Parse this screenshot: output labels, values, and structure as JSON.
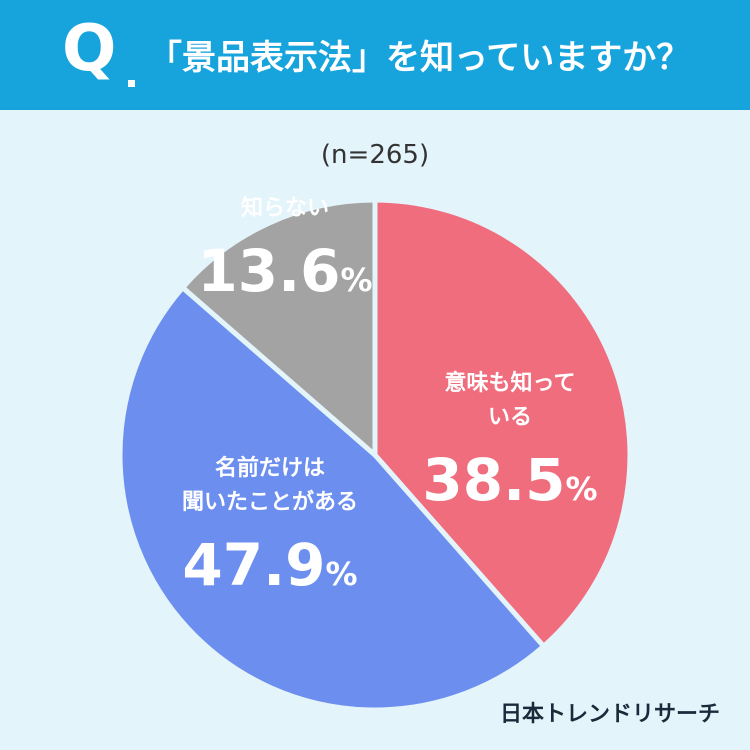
{
  "header": {
    "q_label": "Q",
    "question": "「景品表示法」を知っていますか？"
  },
  "sample_size": "(n=265)",
  "brand": "日本トレンドリサーチ",
  "colors": {
    "header": "#17a3dc",
    "background": "#e4f4fb",
    "know_meaning": "#f06d7e",
    "heard_name": "#6c8fef",
    "dont_know": "#a3a3a3"
  },
  "chart_data": {
    "type": "pie",
    "title": "「景品表示法」を知っていますか？",
    "n": 265,
    "slices": [
      {
        "label_lines": [
          "意味も知って",
          "いる"
        ],
        "value": 38.5,
        "value_text": "38.5",
        "color": "#f06d7e"
      },
      {
        "label_lines": [
          "名前だけは",
          "聞いたことがある"
        ],
        "value": 47.9,
        "value_text": "47.9",
        "color": "#6c8fef"
      },
      {
        "label_lines": [
          "知らない"
        ],
        "value": 13.6,
        "value_text": "13.6",
        "color": "#a3a3a3"
      }
    ],
    "unit": "%"
  }
}
